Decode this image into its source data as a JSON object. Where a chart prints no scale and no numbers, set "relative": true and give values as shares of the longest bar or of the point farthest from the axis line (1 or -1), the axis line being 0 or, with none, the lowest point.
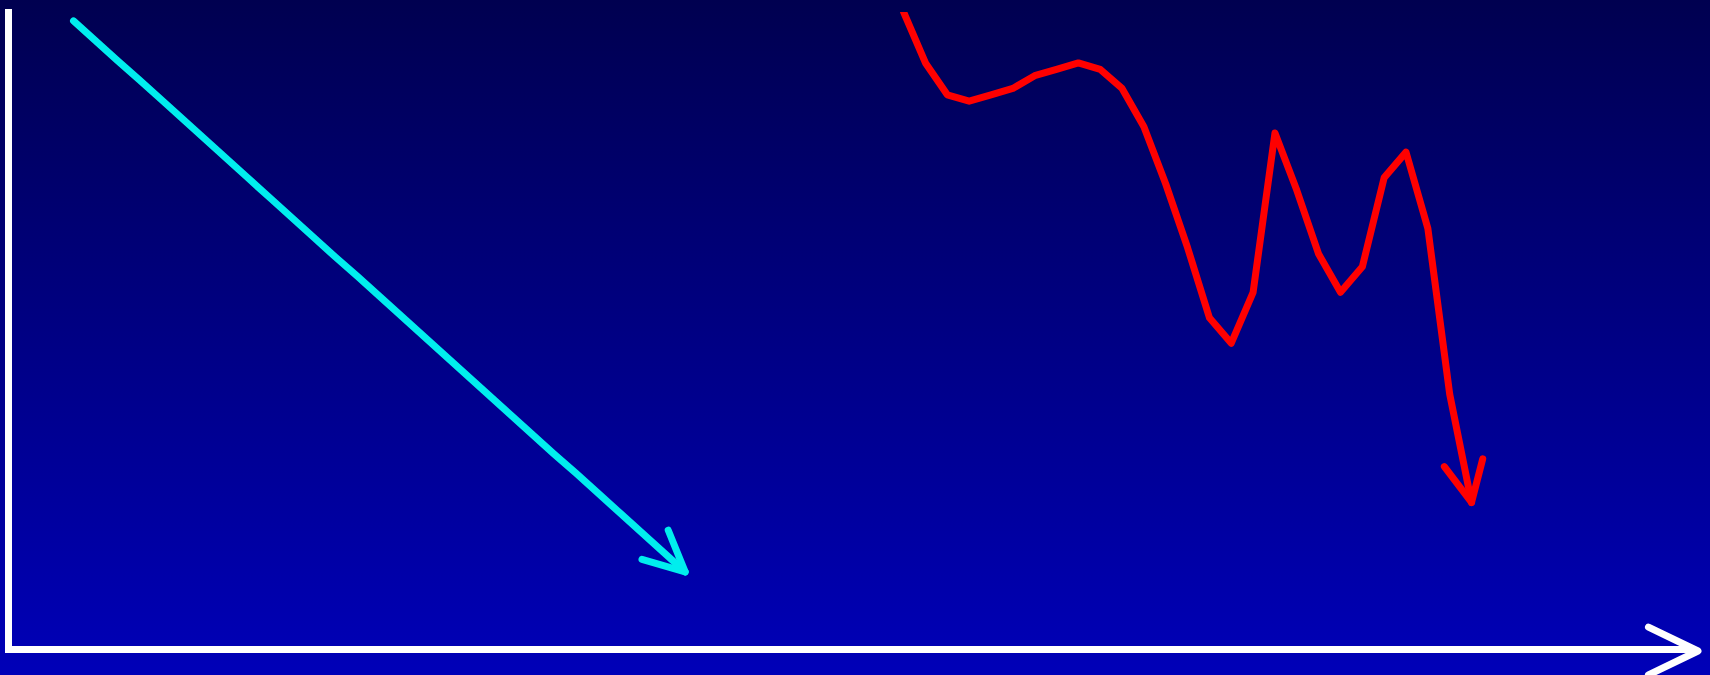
{
  "chart_data": {
    "type": "line",
    "relative": true,
    "grid": false,
    "legend": false,
    "marker": "none",
    "line_style": "solid",
    "tick_labels": false,
    "categories": [
      null,
      null,
      null,
      null,
      null,
      null,
      null,
      null,
      null,
      null,
      null,
      null,
      null,
      null,
      null,
      null,
      null,
      null,
      null,
      null,
      null,
      null,
      null,
      null,
      null,
      null,
      null,
      null,
      null,
      null,
      null,
      null,
      null,
      null,
      null,
      null,
      null,
      null,
      null,
      null,
      null,
      null,
      null,
      null,
      null,
      null,
      null,
      null,
      null,
      null,
      null,
      null,
      null,
      null,
      null,
      null,
      null,
      null,
      null,
      null,
      null,
      null,
      null,
      null,
      null,
      null,
      null,
      null,
      null,
      null,
      null,
      null,
      null,
      null,
      null,
      null,
      null,
      null
    ],
    "series": [
      {
        "color": "#00eeee",
        "values": [
          null,
          null,
          null,
          0.986,
          0.955,
          0.924,
          0.894,
          0.863,
          0.832,
          0.801,
          0.77,
          0.739,
          0.708,
          0.677,
          0.646,
          0.615,
          0.585,
          0.554,
          0.523,
          0.492,
          0.461,
          0.43,
          0.399,
          0.368,
          0.337,
          0.306,
          0.276,
          0.245,
          0.214,
          0.183,
          0.152,
          0.121,
          null,
          null,
          null,
          null,
          null,
          null,
          null,
          null,
          null,
          null,
          null,
          null,
          null,
          null,
          null,
          null,
          null,
          null,
          null,
          null,
          null,
          null,
          null,
          null,
          null,
          null,
          null,
          null,
          null,
          null,
          null,
          null,
          null,
          null,
          null,
          null,
          null,
          null,
          null,
          null,
          null,
          null,
          null,
          null,
          null,
          null
        ]
      },
      {
        "color": "#ff0000",
        "values": [
          null,
          null,
          null,
          null,
          null,
          null,
          null,
          null,
          null,
          null,
          null,
          null,
          null,
          null,
          null,
          null,
          null,
          null,
          null,
          null,
          null,
          null,
          null,
          null,
          null,
          null,
          null,
          null,
          null,
          null,
          null,
          null,
          null,
          null,
          null,
          null,
          null,
          null,
          null,
          null,
          null,
          1.0,
          0.92,
          0.87,
          0.86,
          0.87,
          0.88,
          0.9,
          0.91,
          0.92,
          0.91,
          0.88,
          0.82,
          0.73,
          0.63,
          0.52,
          0.48,
          0.56,
          0.81,
          0.72,
          0.62,
          0.56,
          0.6,
          0.74,
          0.78,
          0.66,
          0.4,
          0.23,
          null,
          null,
          null,
          null,
          null,
          null,
          null,
          null,
          null,
          null
        ]
      }
    ]
  }
}
